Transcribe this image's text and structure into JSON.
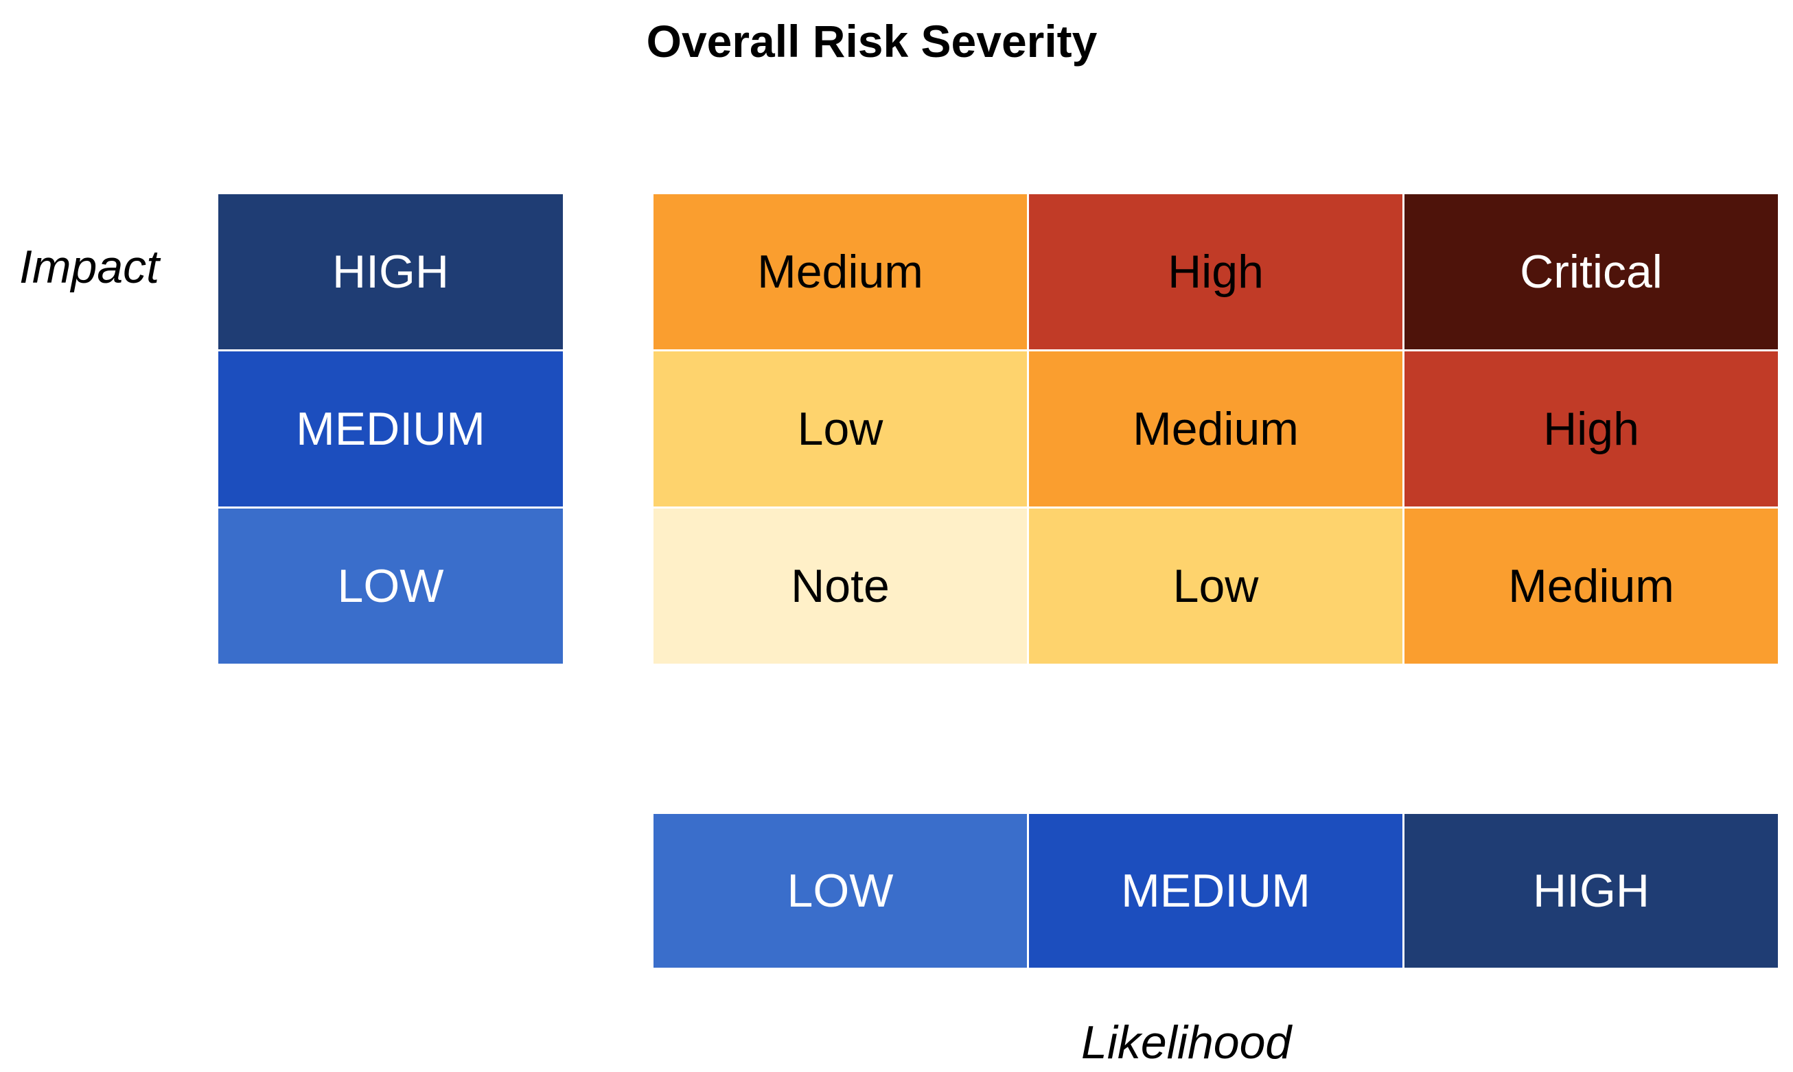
{
  "title": "Overall Risk Severity",
  "impact_axis": {
    "label": "Impact",
    "levels": [
      {
        "label": "HIGH",
        "color": "#1f3d74"
      },
      {
        "label": "MEDIUM",
        "color": "#1c4ebe"
      },
      {
        "label": "LOW",
        "color": "#3a6ecb"
      }
    ]
  },
  "likelihood_axis": {
    "label": "Likelihood",
    "levels": [
      {
        "label": "LOW",
        "color": "#3a6ecb"
      },
      {
        "label": "MEDIUM",
        "color": "#1c4ebe"
      },
      {
        "label": "HIGH",
        "color": "#1f3d74"
      }
    ]
  },
  "severity_colors": {
    "Note": "#fff0c8",
    "Low": "#fed36d",
    "Medium": "#fa9e2f",
    "High": "#c13b27",
    "Critical": "#4e130a"
  },
  "matrix": [
    [
      "Medium",
      "High",
      "Critical"
    ],
    [
      "Low",
      "Medium",
      "High"
    ],
    [
      "Note",
      "Low",
      "Medium"
    ]
  ]
}
